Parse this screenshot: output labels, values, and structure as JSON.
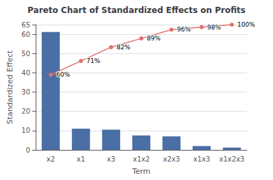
{
  "chart_data": {
    "type": "bar",
    "title": "Pareto Chart of Standardized Effects on Profits",
    "xlabel": "Term",
    "ylabel": "Standardized Effect",
    "categories": [
      "x2",
      "x1",
      "x3",
      "x1x2",
      "x2x3",
      "x1x3",
      "x1x2x3"
    ],
    "series": [
      {
        "type": "bar",
        "color": "#4a6fa5",
        "values": [
          61.2,
          11.0,
          10.5,
          7.5,
          7.0,
          2.0,
          1.2
        ]
      },
      {
        "type": "line",
        "axis": "y2",
        "color": "#e07070",
        "marker": "circle",
        "data_labels": true,
        "values": [
          60,
          71,
          82,
          89,
          96,
          98,
          100
        ],
        "value_labels": [
          "60%",
          "71%",
          "82%",
          "89%",
          "96%",
          "98%",
          "100%"
        ]
      }
    ],
    "ylim": [
      0,
      65
    ],
    "yticks": [
      0,
      10,
      20,
      30,
      40,
      50,
      60
    ],
    "y2lim": [
      0,
      100
    ],
    "grid": true
  }
}
